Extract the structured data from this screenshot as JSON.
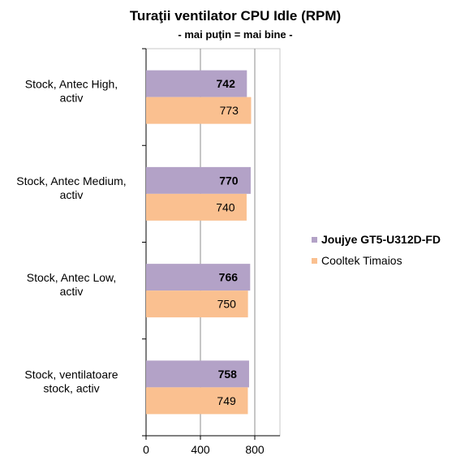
{
  "chart_data": {
    "type": "bar",
    "orientation": "horizontal",
    "title": "Turaţii ventilator CPU Idle (RPM)",
    "subtitle": "- mai puţin = mai bine -",
    "categories": [
      [
        "Stock, Antec High,",
        "activ"
      ],
      [
        "Stock, Antec Medium,",
        "activ"
      ],
      [
        "Stock, Antec Low,",
        "activ"
      ],
      [
        "Stock, ventilatoare",
        "stock, activ"
      ]
    ],
    "series": [
      {
        "name": "Joujye GT5-U312D-FD",
        "color": "#b3a2c7",
        "label_bold": true,
        "values": [
          742,
          770,
          766,
          758
        ]
      },
      {
        "name": "Cooltek Timaios",
        "color": "#fac090",
        "label_bold": false,
        "values": [
          773,
          740,
          750,
          749
        ]
      }
    ],
    "xlim": [
      0,
      1000
    ],
    "xticks": [
      0,
      400,
      800
    ],
    "grid": true,
    "legend_position": "right"
  }
}
